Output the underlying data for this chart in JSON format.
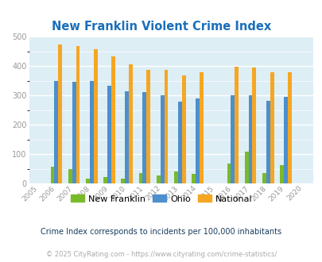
{
  "title": "New Franklin Violent Crime Index",
  "years": [
    2005,
    2006,
    2007,
    2008,
    2009,
    2010,
    2011,
    2012,
    2013,
    2014,
    2015,
    2016,
    2017,
    2018,
    2019,
    2020
  ],
  "new_franklin": [
    0,
    58,
    50,
    15,
    22,
    15,
    35,
    27,
    40,
    33,
    0,
    67,
    108,
    35,
    62,
    0
  ],
  "ohio": [
    0,
    350,
    345,
    350,
    333,
    315,
    310,
    301,
    278,
    290,
    0,
    301,
    299,
    281,
    295,
    0
  ],
  "national": [
    0,
    473,
    468,
    457,
    432,
    405,
    387,
    387,
    367,
    378,
    0,
    398,
    394,
    380,
    380,
    0
  ],
  "bar_color_nf": "#7aba2a",
  "bar_color_ohio": "#4d8fcc",
  "bar_color_national": "#f5a623",
  "bg_color": "#ddeef5",
  "title_color": "#1a6fba",
  "subtitle": "Crime Index corresponds to incidents per 100,000 inhabitants",
  "footer": "© 2025 CityRating.com - https://www.cityrating.com/crime-statistics/",
  "ylim": [
    0,
    500
  ],
  "yticks": [
    0,
    100,
    200,
    300,
    400,
    500
  ],
  "bar_width": 0.22,
  "legend_labels": [
    "New Franklin",
    "Ohio",
    "National"
  ]
}
